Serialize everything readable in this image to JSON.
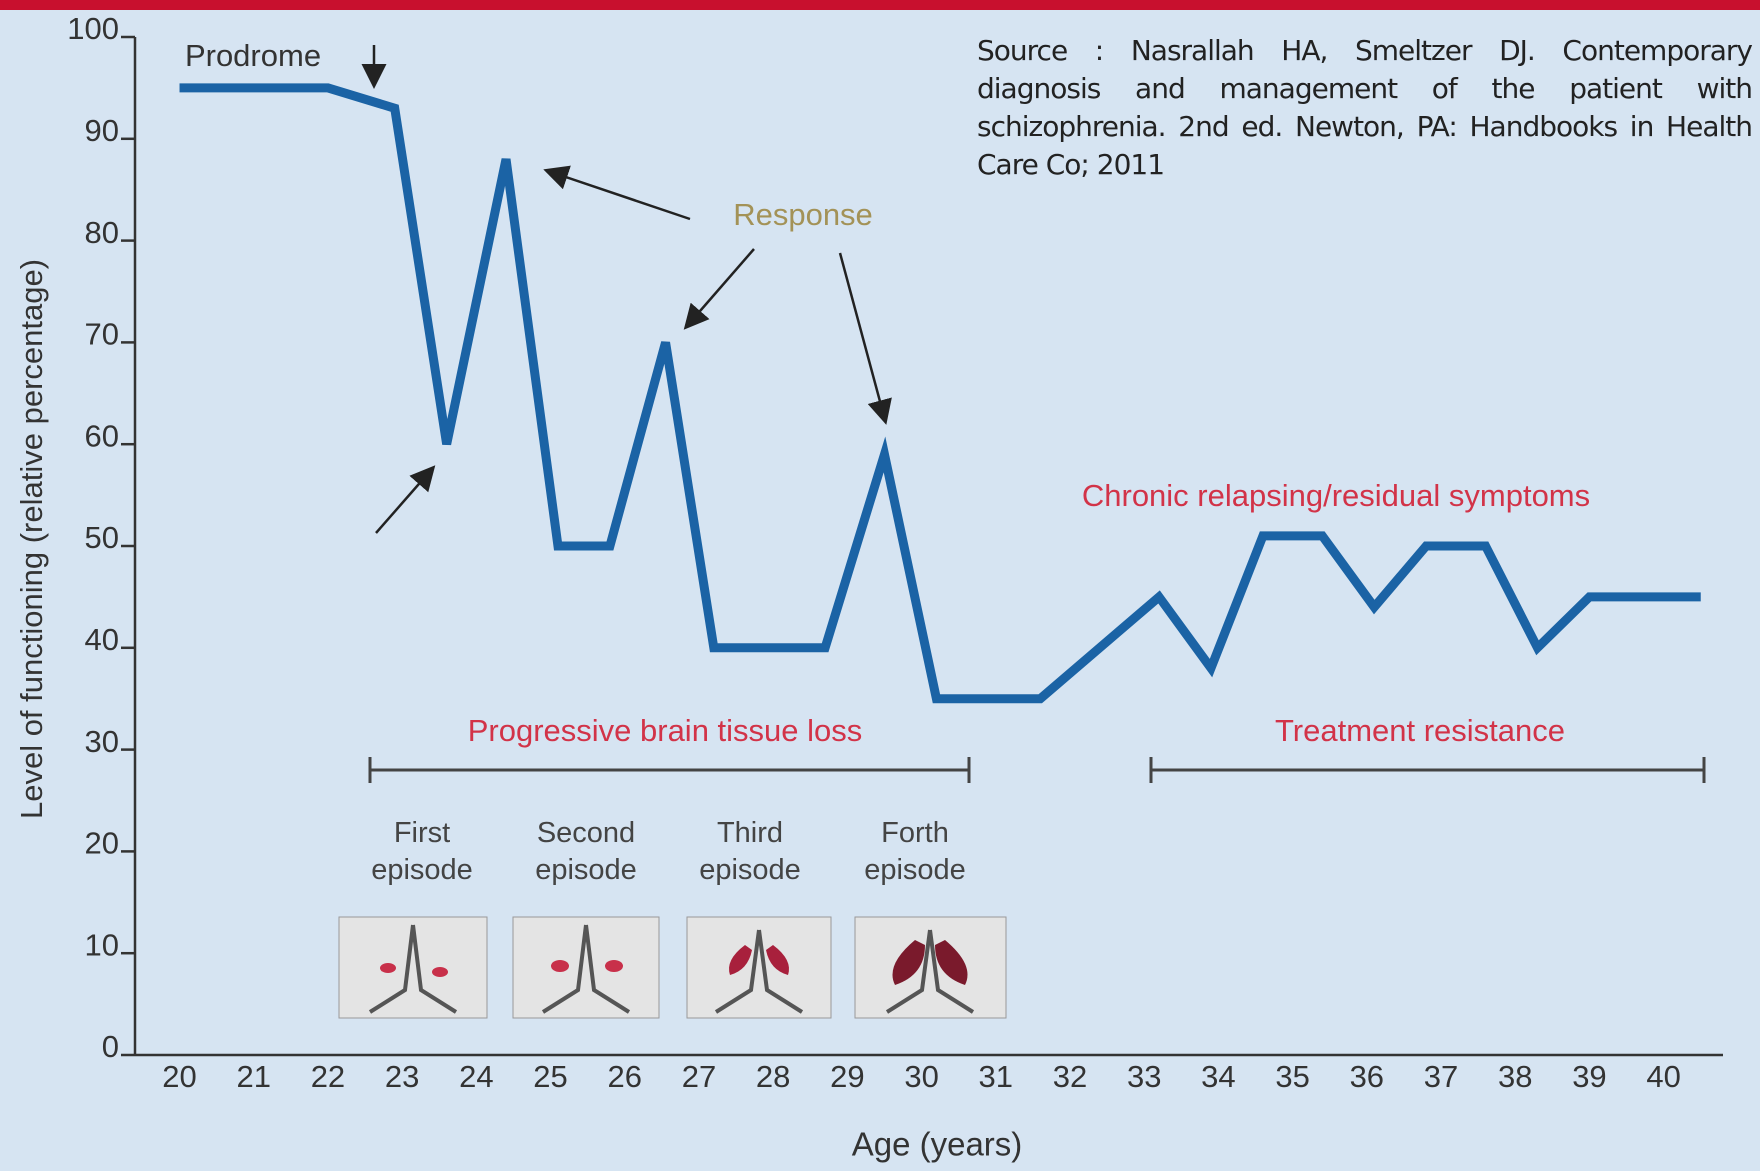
{
  "chart_data": {
    "type": "line",
    "x_label": "Age (years)",
    "y_label": "Level of functioning (relative percentage)",
    "x": [
      20,
      22,
      22.9,
      23.6,
      24.4,
      25.1,
      25.8,
      26.55,
      27.2,
      28.7,
      29.5,
      30.2,
      31.6,
      33.2,
      33.9,
      34.6,
      35.4,
      36.1,
      36.8,
      37.6,
      38.3,
      39,
      40.5
    ],
    "values": [
      95,
      95,
      93,
      60,
      88,
      50,
      50,
      70,
      40,
      40,
      59,
      35,
      35,
      45,
      38,
      51,
      51,
      44,
      50,
      50,
      40,
      45,
      45
    ],
    "color": "#1b63a5",
    "xlim": [
      19.4,
      40.8
    ],
    "ylim": [
      0,
      100
    ],
    "xticks": [
      20,
      21,
      22,
      23,
      24,
      25,
      26,
      27,
      28,
      29,
      30,
      31,
      32,
      33,
      34,
      35,
      36,
      37,
      38,
      39,
      40
    ],
    "yticks": [
      0,
      10,
      20,
      30,
      40,
      50,
      60,
      70,
      80,
      90,
      100
    ],
    "grid": false,
    "annotations": [
      "Prodrome",
      "Response",
      "Chronic relapsing/residual symptoms",
      "Progressive brain tissue loss",
      "Treatment resistance",
      "First episode",
      "Second episode",
      "Third episode",
      "Forth episode"
    ],
    "source": "Source : Nasrallah HA, Smeltzer DJ. Contemporary diagnosis and management of the patient with schizophrenia. 2nd ed. Newton, PA: Handbooks in Health Care Co; 2011"
  }
}
